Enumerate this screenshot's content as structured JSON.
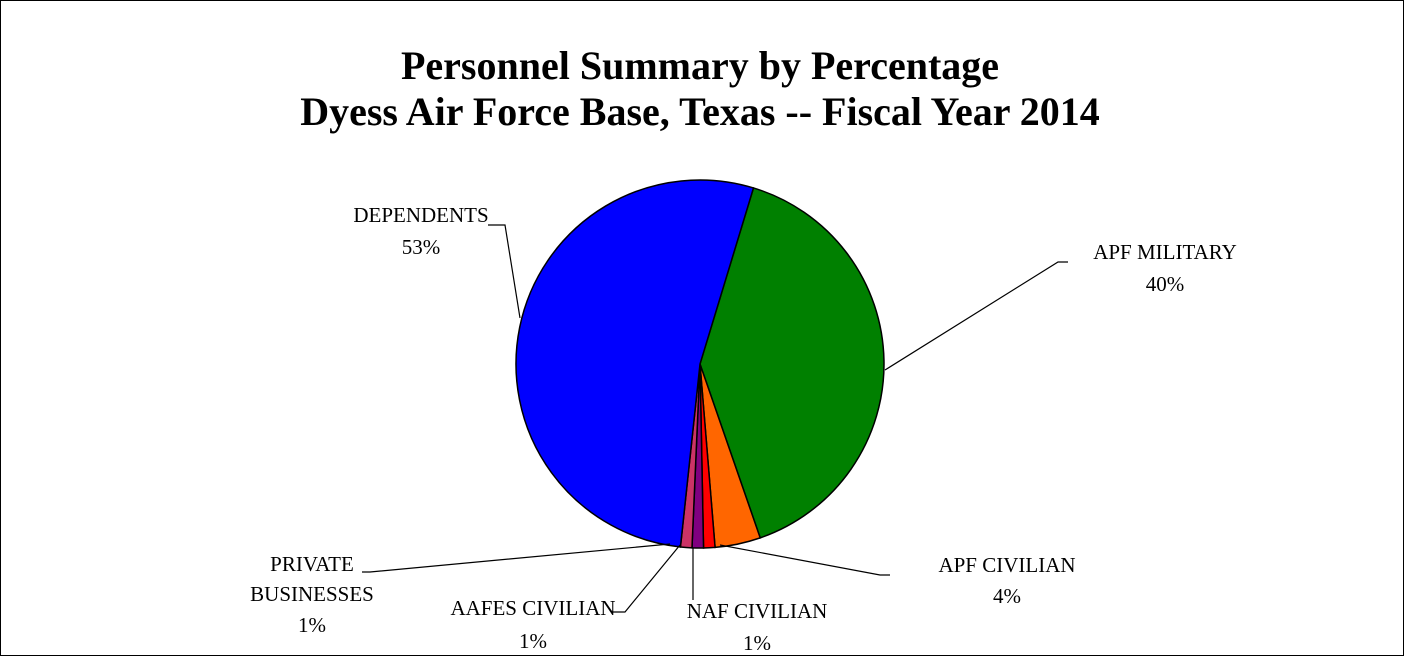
{
  "chart_data": {
    "type": "pie",
    "title": "Personnel Summary by Percentage",
    "subtitle": "Dyess Air Force Base, Texas -- Fiscal Year 2014",
    "categories": [
      "APF MILITARY",
      "APF CIVILIAN",
      "NAF CIVILIAN",
      "AAFES CIVILIAN",
      "PRIVATE BUSINESSES",
      "DEPENDENTS"
    ],
    "values": [
      40,
      4,
      1,
      1,
      1,
      53
    ],
    "value_labels": [
      "40%",
      "4%",
      "1%",
      "1%",
      "1%",
      "53%"
    ],
    "colors": [
      "#008000",
      "#ff6600",
      "#ff0000",
      "#800080",
      "#cc3366",
      "#0000ff"
    ]
  }
}
